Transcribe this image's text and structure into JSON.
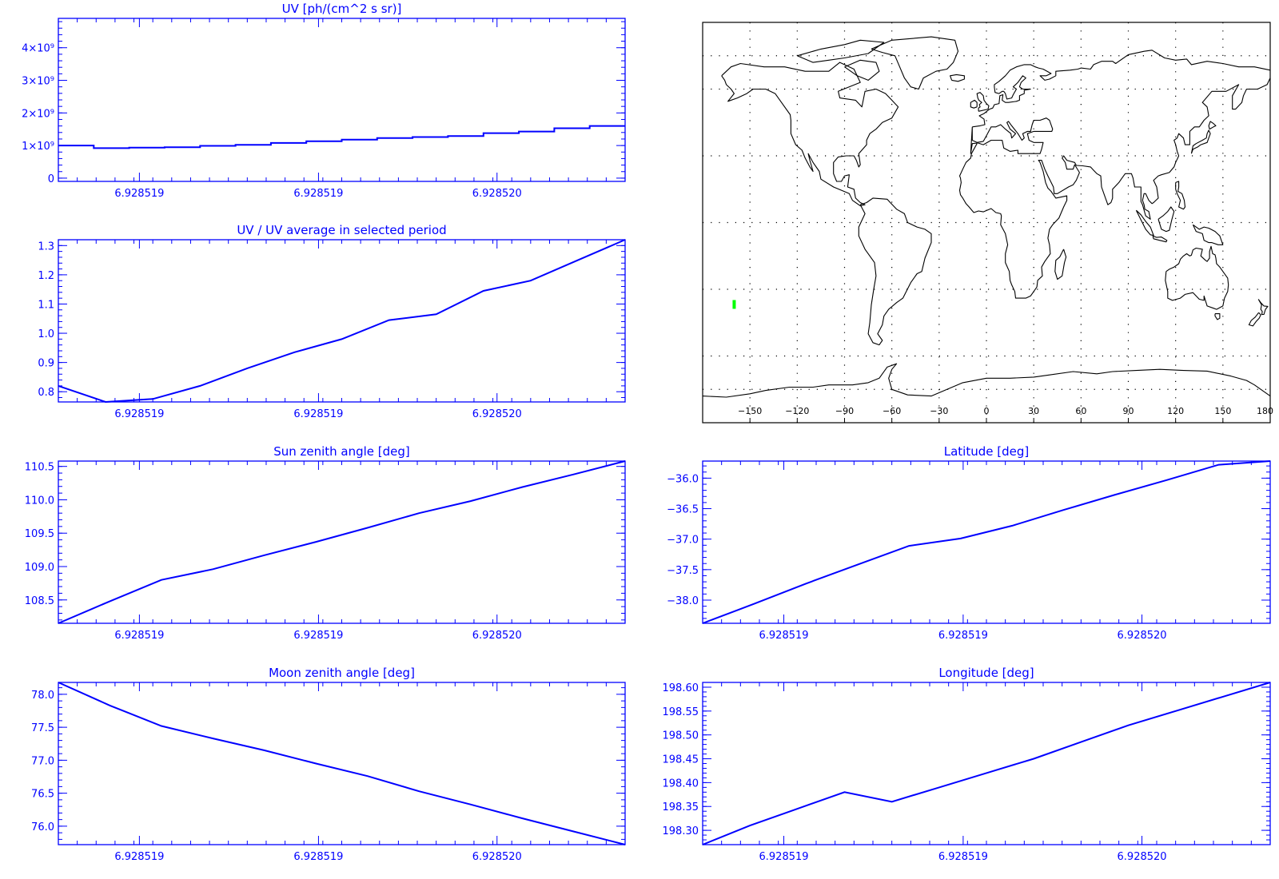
{
  "colors": {
    "axis": "#0000ff",
    "line": "#0000ff",
    "map": "#000000",
    "marker": "#00ff00",
    "grid": "#000000"
  },
  "chart_data": [
    {
      "id": "uv",
      "type": "line",
      "step": true,
      "title": "UV [ph/(cm^2 s sr)]",
      "xlabel": "",
      "ylabel": "",
      "x_tick_labels": [
        "6.928519",
        "6.928519",
        "6.928520"
      ],
      "y_ticks": [
        {
          "value": 0,
          "label": "0"
        },
        {
          "value": 1000000000,
          "label": "1×10⁹"
        },
        {
          "value": 2000000000,
          "label": "2×10⁹"
        },
        {
          "value": 3000000000,
          "label": "3×10⁹"
        },
        {
          "value": 4000000000,
          "label": "4×10⁹"
        }
      ],
      "ylim": [
        -100000000,
        4900000000
      ],
      "series": [
        {
          "values": [
            1000000000,
            920000000,
            935000000,
            950000000,
            990000000,
            1020000000,
            1080000000,
            1130000000,
            1180000000,
            1230000000,
            1260000000,
            1290000000,
            1380000000,
            1430000000,
            1530000000,
            1600000000
          ]
        }
      ]
    },
    {
      "id": "uv-ratio",
      "type": "line",
      "title": "UV / UV average in selected period",
      "xlabel": "",
      "ylabel": "",
      "x_tick_labels": [
        "6.928519",
        "6.928519",
        "6.928520"
      ],
      "y_ticks": [
        {
          "value": 0.8,
          "label": "0.8"
        },
        {
          "value": 0.9,
          "label": "0.9"
        },
        {
          "value": 1.0,
          "label": "1.0"
        },
        {
          "value": 1.1,
          "label": "1.1"
        },
        {
          "value": 1.2,
          "label": "1.2"
        },
        {
          "value": 1.3,
          "label": "1.3"
        }
      ],
      "ylim": [
        0.765,
        1.32
      ],
      "series": [
        {
          "values": [
            0.82,
            0.765,
            0.775,
            0.82,
            0.88,
            0.935,
            0.98,
            1.045,
            1.065,
            1.145,
            1.18,
            1.25,
            1.32
          ]
        }
      ]
    },
    {
      "id": "sun-zenith",
      "type": "line",
      "title": "Sun zenith angle [deg]",
      "xlabel": "",
      "ylabel": "",
      "x_tick_labels": [
        "6.928519",
        "6.928519",
        "6.928520"
      ],
      "y_ticks": [
        {
          "value": 108.5,
          "label": "108.5"
        },
        {
          "value": 109.0,
          "label": "109.0"
        },
        {
          "value": 109.5,
          "label": "109.5"
        },
        {
          "value": 110.0,
          "label": "110.0"
        },
        {
          "value": 110.5,
          "label": "110.5"
        }
      ],
      "ylim": [
        108.15,
        110.58
      ],
      "series": [
        {
          "values": [
            108.15,
            108.48,
            108.8,
            108.96,
            109.17,
            109.37,
            109.58,
            109.8,
            109.98,
            110.19,
            110.38,
            110.58
          ]
        }
      ]
    },
    {
      "id": "latitude",
      "type": "line",
      "title": "Latitude [deg]",
      "xlabel": "",
      "ylabel": "",
      "x_tick_labels": [
        "6.928519",
        "6.928519",
        "6.928520"
      ],
      "y_ticks": [
        {
          "value": -38.0,
          "label": "−38.0"
        },
        {
          "value": -37.5,
          "label": "−37.5"
        },
        {
          "value": -37.0,
          "label": "−37.0"
        },
        {
          "value": -36.5,
          "label": "−36.5"
        },
        {
          "value": -36.0,
          "label": "−36.0"
        }
      ],
      "ylim": [
        -38.38,
        -35.72
      ],
      "series": [
        {
          "values": [
            -38.38,
            -38.06,
            -37.73,
            -37.42,
            -37.11,
            -36.99,
            -36.78,
            -36.52,
            -36.27,
            -36.03,
            -35.78,
            -35.72
          ]
        }
      ]
    },
    {
      "id": "moon-zenith",
      "type": "line",
      "title": "Moon zenith angle [deg]",
      "xlabel": "",
      "ylabel": "",
      "x_tick_labels": [
        "6.928519",
        "6.928519",
        "6.928520"
      ],
      "y_ticks": [
        {
          "value": 76.0,
          "label": "76.0"
        },
        {
          "value": 76.5,
          "label": "76.5"
        },
        {
          "value": 77.0,
          "label": "77.0"
        },
        {
          "value": 77.5,
          "label": "77.5"
        },
        {
          "value": 78.0,
          "label": "78.0"
        }
      ],
      "ylim": [
        75.72,
        78.18
      ],
      "series": [
        {
          "values": [
            78.18,
            77.83,
            77.52,
            77.33,
            77.15,
            76.95,
            76.76,
            76.53,
            76.33,
            76.12,
            75.92,
            75.72
          ]
        }
      ]
    },
    {
      "id": "longitude",
      "type": "line",
      "title": "Longitude [deg]",
      "xlabel": "",
      "ylabel": "",
      "x_tick_labels": [
        "6.928519",
        "6.928519",
        "6.928520"
      ],
      "y_ticks": [
        {
          "value": 198.3,
          "label": "198.30"
        },
        {
          "value": 198.35,
          "label": "198.35"
        },
        {
          "value": 198.4,
          "label": "198.40"
        },
        {
          "value": 198.45,
          "label": "198.45"
        },
        {
          "value": 198.5,
          "label": "198.50"
        },
        {
          "value": 198.55,
          "label": "198.55"
        },
        {
          "value": 198.6,
          "label": "198.60"
        }
      ],
      "ylim": [
        198.27,
        198.61
      ],
      "series": [
        {
          "values": [
            198.27,
            198.31,
            198.345,
            198.38,
            198.36,
            198.39,
            198.42,
            198.45,
            198.485,
            198.52,
            198.55,
            198.58,
            198.61
          ]
        }
      ]
    }
  ],
  "map": {
    "lon_tick_labels": [
      "−150",
      "−120",
      "−90",
      "−60",
      "−30",
      "0",
      "30",
      "60",
      "90",
      "120",
      "150",
      "180"
    ],
    "lon_ticks": [
      -150,
      -120,
      -90,
      -60,
      -30,
      0,
      30,
      60,
      90,
      120,
      150,
      180
    ],
    "grid": true,
    "marker": {
      "lon": -160,
      "lat": -37
    }
  }
}
